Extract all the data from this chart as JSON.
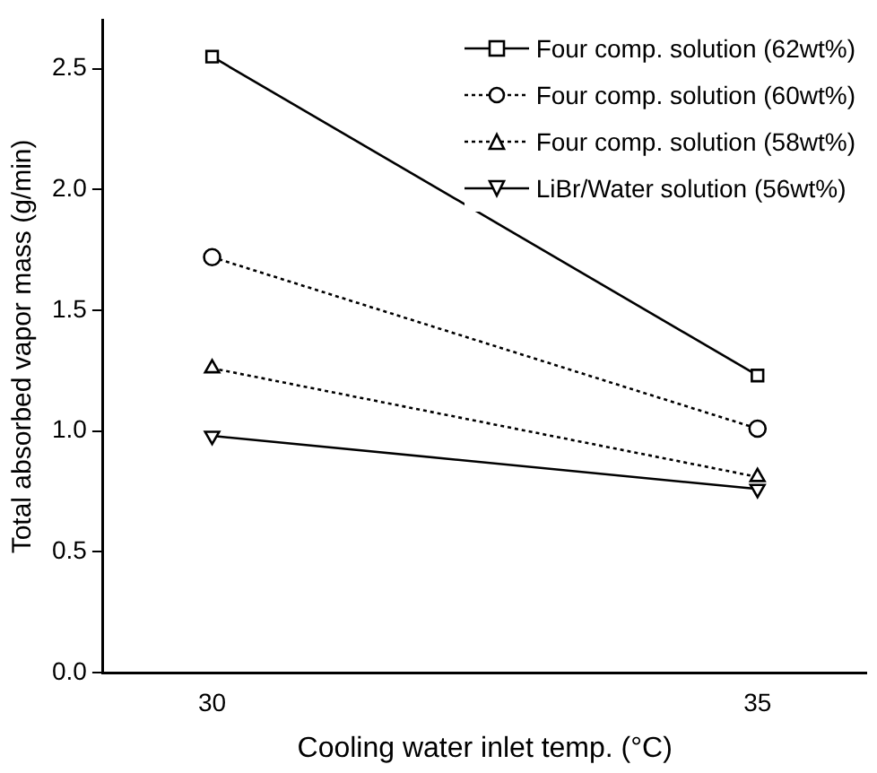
{
  "chart_data": {
    "type": "line",
    "xlabel": "Cooling water inlet temp. (°C)",
    "ylabel": "Total absorbed vapor mass (g/min)",
    "x": [
      30,
      35
    ],
    "xlim": [
      29,
      36
    ],
    "xticks": [
      30,
      35
    ],
    "ylim": [
      0,
      2.7
    ],
    "yticks": [
      {
        "value": 0,
        "label": "0.0"
      },
      {
        "value": 0.5,
        "label": "0.5"
      },
      {
        "value": 1,
        "label": "1.0"
      },
      {
        "value": 1.5,
        "label": "1.5"
      },
      {
        "value": 2,
        "label": "2.0"
      },
      {
        "value": 2.5,
        "label": "2.5"
      }
    ],
    "grid": false,
    "legend": "top right",
    "series": [
      {
        "name": "Four comp. solution (62wt%)",
        "color": "#000000",
        "values": [
          2.55,
          1.23
        ],
        "marker": "square",
        "line_style": "solid"
      },
      {
        "name": "Four comp. solution (60wt%)",
        "color": "#000000",
        "values": [
          1.72,
          1.01
        ],
        "marker": "circle",
        "line_style": "dotted"
      },
      {
        "name": "Four comp. solution (58wt%)",
        "color": "#000000",
        "values": [
          1.26,
          0.81
        ],
        "marker": "triangle",
        "line_style": "dotted"
      },
      {
        "name": "LiBr/Water solution (56wt%)",
        "color": "#000000",
        "values": [
          0.98,
          0.76
        ],
        "marker": "triangle-down",
        "line_style": "solid"
      }
    ]
  }
}
